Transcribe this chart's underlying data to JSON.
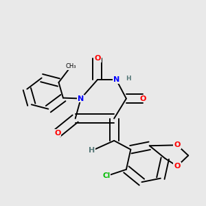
{
  "background_color": "#e9e9e9",
  "atom_colors": {
    "N": "#0000ff",
    "O": "#ff0000",
    "Cl": "#00bb00",
    "C": "#000000",
    "H": "#557777"
  },
  "bond_color": "#000000",
  "bond_width": 1.4,
  "font_size_atom": 8
}
